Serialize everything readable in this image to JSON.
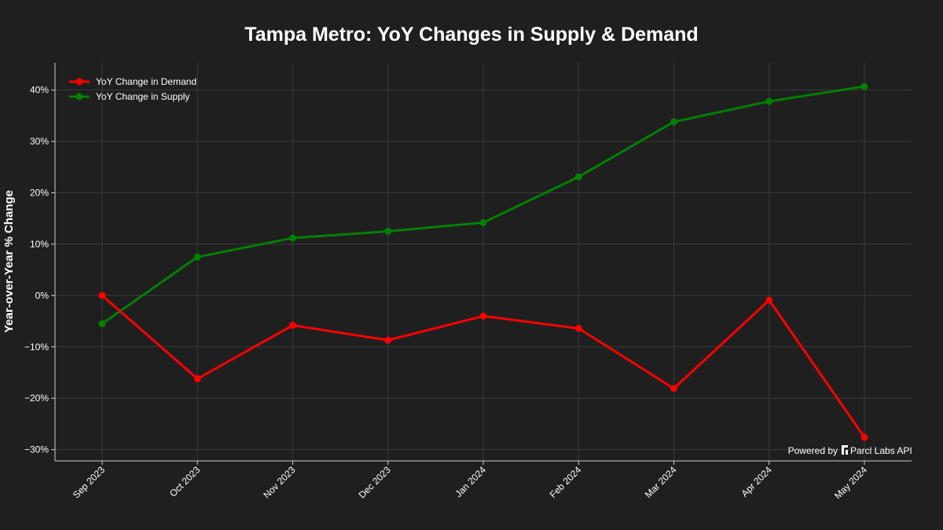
{
  "colors": {
    "background": "#1f1f1f",
    "grid": "#3a3a3a",
    "axis": "#cccccc",
    "demand": "#ff0000",
    "supply": "#008000",
    "text": "#ffffff"
  },
  "watermark": {
    "prefix": "Powered by",
    "brand": "Parcl Labs API",
    "icon": "parcl-logo-icon"
  },
  "chart_data": {
    "type": "line",
    "title": "Tampa Metro: YoY Changes in Supply & Demand",
    "xlabel": "",
    "ylabel": "Year-over-Year % Change",
    "categories": [
      "Sep 2023",
      "Oct 2023",
      "Nov 2023",
      "Dec 2023",
      "Jan 2024",
      "Feb 2024",
      "Mar 2024",
      "Apr 2024",
      "May 2024"
    ],
    "series": [
      {
        "name": "YoY Change in Demand",
        "color": "#ff0000",
        "values": [
          0.0,
          -16.2,
          -5.8,
          -8.7,
          -4.0,
          -6.4,
          -18.1,
          -0.9,
          -27.6
        ]
      },
      {
        "name": "YoY Change in Supply",
        "color": "#008000",
        "values": [
          -5.5,
          7.5,
          11.2,
          12.5,
          14.2,
          23.1,
          33.8,
          37.8,
          40.7
        ]
      }
    ],
    "yticks": [
      -30,
      -20,
      -10,
      0,
      10,
      20,
      30,
      40
    ],
    "ytick_labels": [
      "−30%",
      "−20%",
      "−10%",
      "0%",
      "10%",
      "20%",
      "30%",
      "40%"
    ],
    "ylim": [
      -32.2,
      45.3
    ],
    "grid": true,
    "legend_position": "top-left"
  }
}
